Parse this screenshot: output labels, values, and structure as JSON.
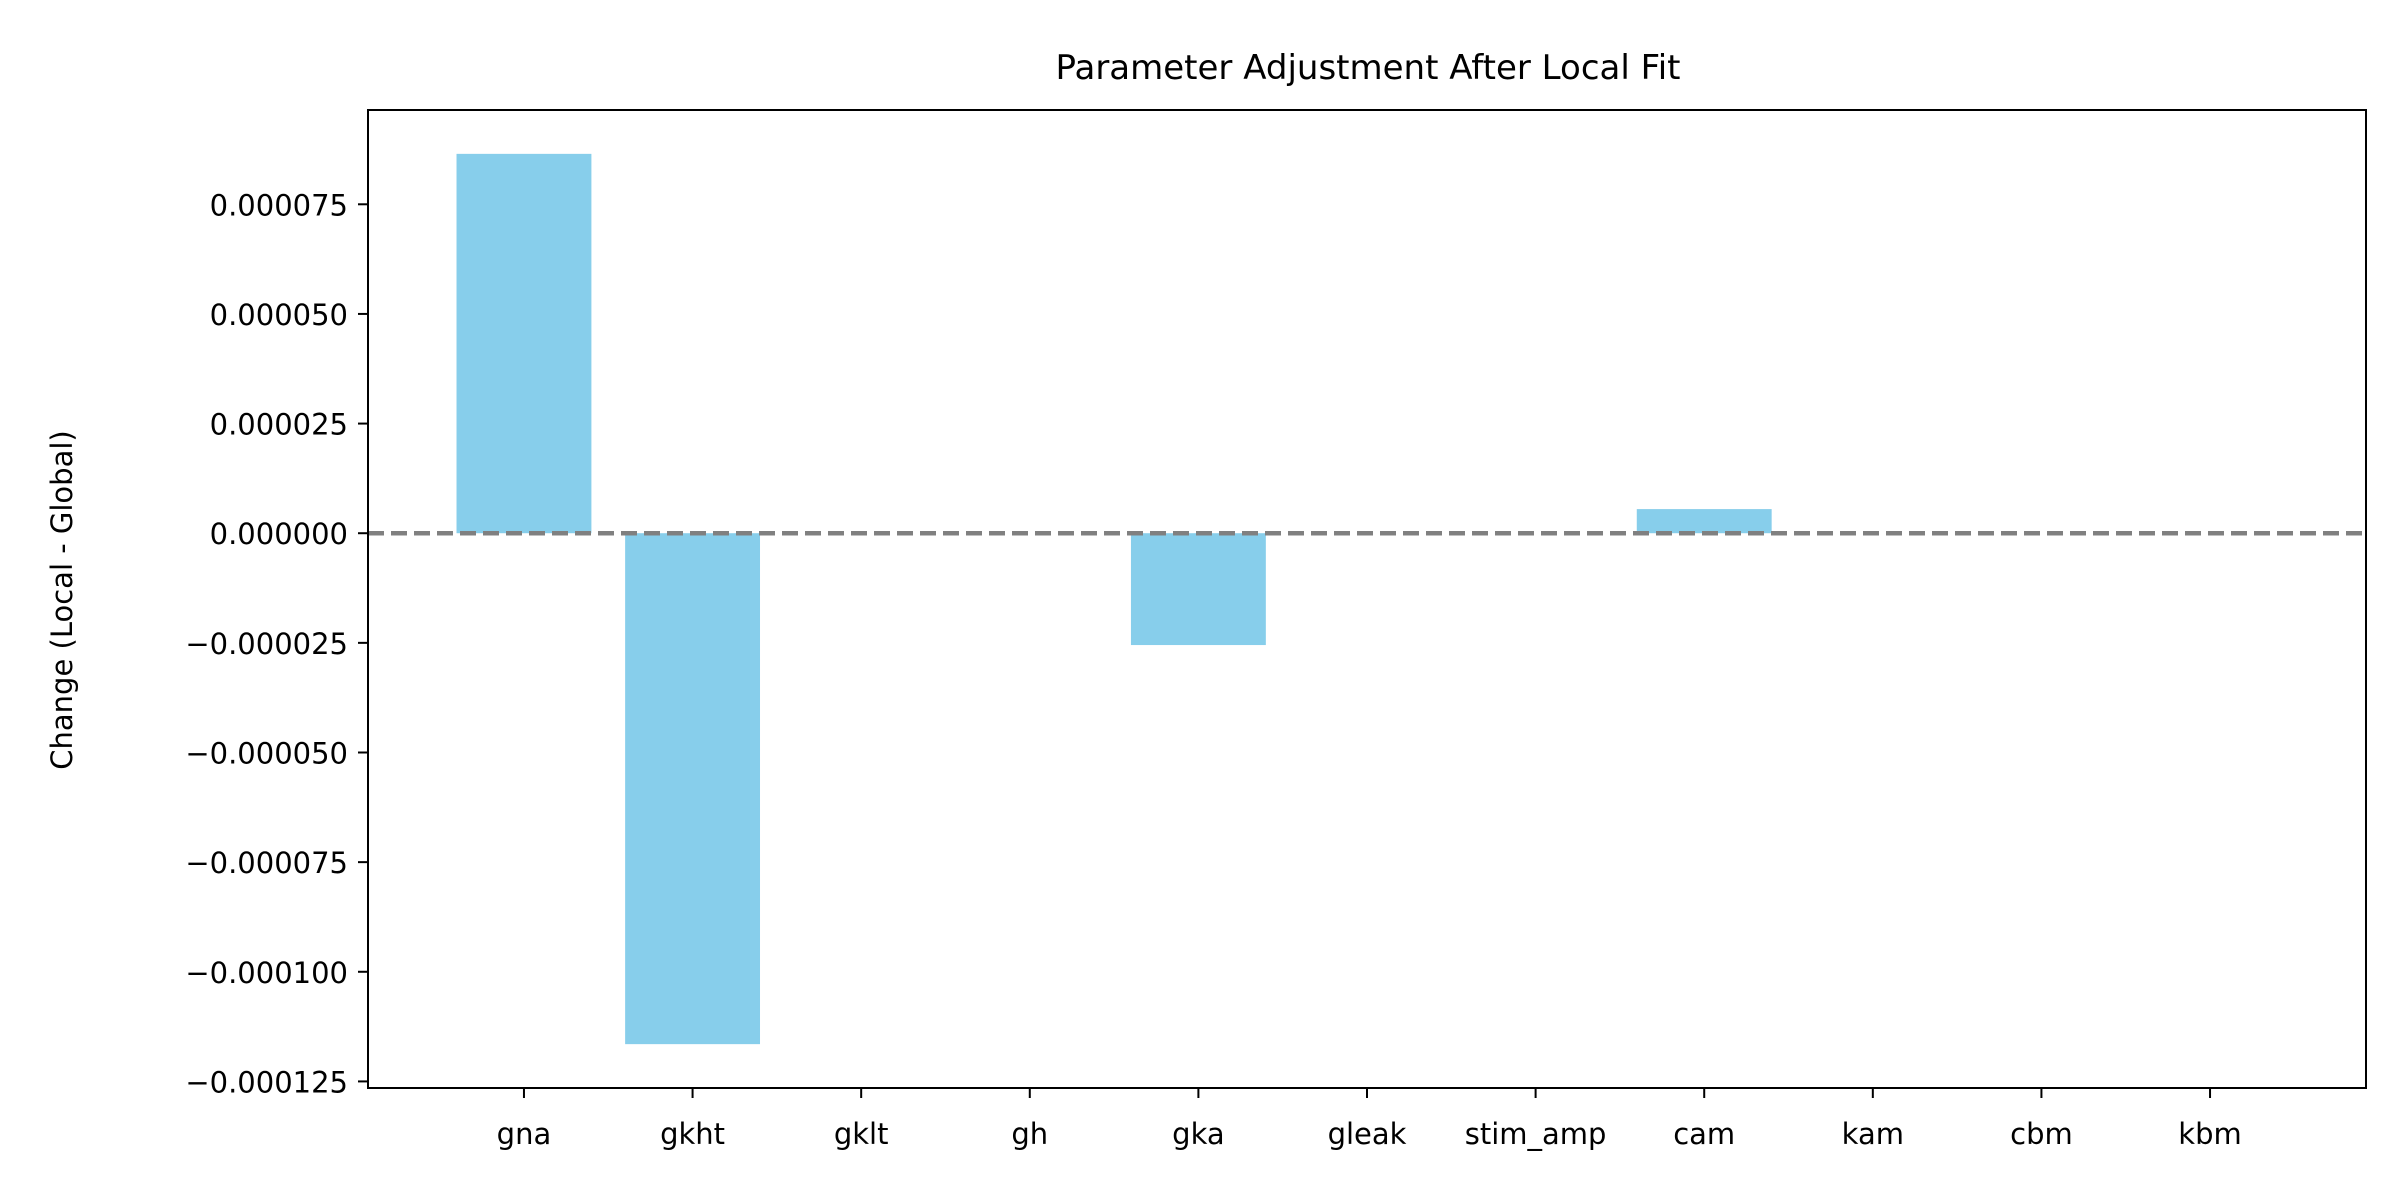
{
  "chart_data": {
    "type": "bar",
    "title": "Parameter Adjustment After Local Fit",
    "xlabel": "",
    "ylabel": "Change (Local - Global)",
    "categories": [
      "gna",
      "gkht",
      "gklt",
      "gh",
      "gka",
      "gleak",
      "stim_amp",
      "cam",
      "kam",
      "cbm",
      "kbm"
    ],
    "values": [
      8.65e-05,
      -0.0001165,
      0,
      0,
      -2.55e-05,
      0,
      0,
      5.5e-06,
      0,
      0,
      0
    ],
    "ylim": [
      -0.0001265,
      9.65e-05
    ],
    "yticks": [
      7.5e-05,
      5e-05,
      2.5e-05,
      0,
      -2.5e-05,
      -5e-05,
      -7.5e-05,
      -0.0001,
      -0.000125
    ],
    "ytick_labels": [
      "0.000075",
      "0.000050",
      "0.000025",
      "0.000000",
      "−0.000025",
      "−0.000050",
      "−0.000075",
      "−0.000100",
      "−0.000125"
    ],
    "reference_line": {
      "y": 0,
      "style": "dashed",
      "color": "#808080"
    },
    "bar_color": "#87ceeb",
    "grid": false,
    "legend": "none"
  }
}
